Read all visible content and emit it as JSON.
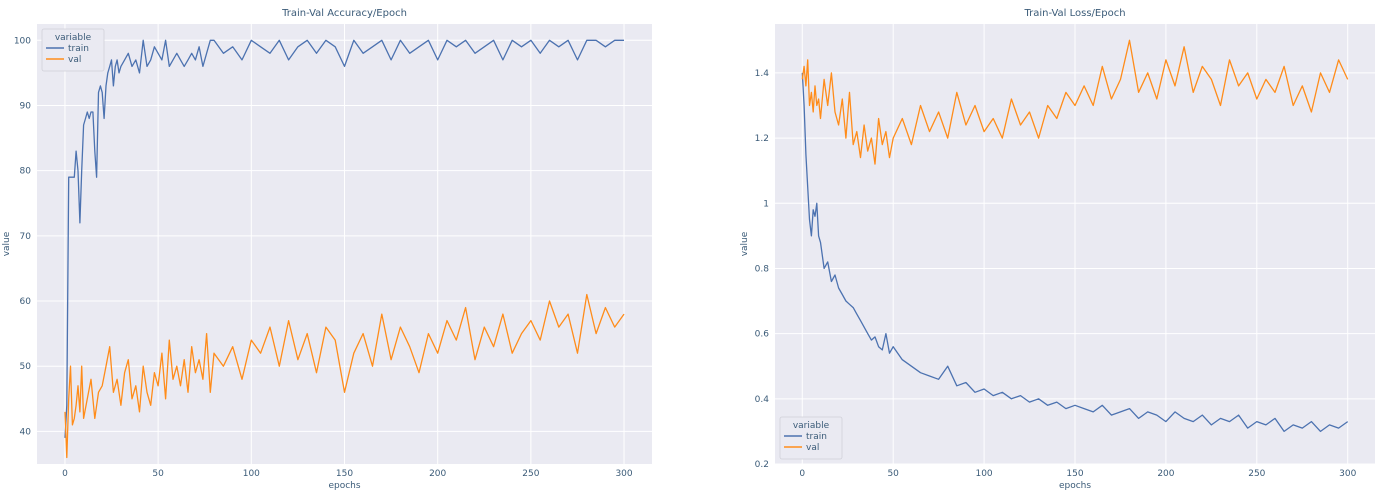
{
  "chart_data": [
    {
      "type": "line",
      "title": "Train-Val Accuracy/Epoch",
      "xlabel": "epochs",
      "ylabel": "value",
      "xlim": [
        -15,
        315
      ],
      "ylim": [
        35,
        102.5
      ],
      "xticks": [
        0,
        50,
        100,
        150,
        200,
        250,
        300
      ],
      "yticks": [
        40,
        50,
        60,
        70,
        80,
        90,
        100
      ],
      "grid": true,
      "legend": {
        "title": "variable",
        "placement": "top-left"
      },
      "series": [
        {
          "name": "train",
          "color": "#4c72b0",
          "x": [
            0,
            1,
            2,
            3,
            4,
            5,
            6,
            7,
            8,
            9,
            10,
            11,
            12,
            13,
            14,
            15,
            16,
            17,
            18,
            19,
            20,
            21,
            22,
            23,
            24,
            25,
            26,
            27,
            28,
            29,
            30,
            32,
            34,
            36,
            38,
            40,
            42,
            44,
            46,
            48,
            50,
            52,
            54,
            56,
            58,
            60,
            62,
            64,
            66,
            68,
            70,
            72,
            74,
            76,
            78,
            80,
            85,
            90,
            95,
            100,
            105,
            110,
            115,
            120,
            125,
            130,
            135,
            140,
            145,
            150,
            155,
            160,
            165,
            170,
            175,
            180,
            185,
            190,
            195,
            200,
            205,
            210,
            215,
            220,
            225,
            230,
            235,
            240,
            245,
            250,
            255,
            260,
            265,
            270,
            275,
            280,
            285,
            290,
            295,
            300
          ],
          "values": [
            39,
            44,
            79,
            79,
            79,
            79,
            83,
            80,
            72,
            80,
            87,
            88,
            89,
            88,
            89,
            89,
            83,
            79,
            92,
            93,
            92,
            88,
            93,
            95,
            96,
            97,
            93,
            96,
            97,
            95,
            96,
            97,
            98,
            96,
            97,
            95,
            100,
            96,
            97,
            99,
            98,
            97,
            100,
            96,
            97,
            98,
            97,
            96,
            97,
            98,
            97,
            99,
            96,
            98,
            100,
            100,
            98,
            99,
            97,
            100,
            99,
            98,
            100,
            97,
            99,
            100,
            98,
            100,
            99,
            96,
            100,
            98,
            99,
            100,
            97,
            100,
            98,
            99,
            100,
            97,
            100,
            99,
            100,
            98,
            99,
            100,
            97,
            100,
            99,
            100,
            98,
            100,
            99,
            100,
            97,
            100,
            100,
            99,
            100,
            100
          ]
        },
        {
          "name": "val",
          "color": "#ff8c1a",
          "x": [
            0,
            1,
            2,
            3,
            4,
            5,
            6,
            7,
            8,
            9,
            10,
            12,
            14,
            16,
            18,
            20,
            22,
            24,
            26,
            28,
            30,
            32,
            34,
            36,
            38,
            40,
            42,
            44,
            46,
            48,
            50,
            52,
            54,
            56,
            58,
            60,
            62,
            64,
            66,
            68,
            70,
            72,
            74,
            76,
            78,
            80,
            85,
            90,
            95,
            100,
            105,
            110,
            115,
            120,
            125,
            130,
            135,
            140,
            145,
            150,
            155,
            160,
            165,
            170,
            175,
            180,
            185,
            190,
            195,
            200,
            205,
            210,
            215,
            220,
            225,
            230,
            235,
            240,
            245,
            250,
            255,
            260,
            265,
            270,
            275,
            280,
            285,
            290,
            295,
            300
          ],
          "values": [
            43,
            36,
            45,
            50,
            41,
            42,
            44,
            47,
            43,
            50,
            42,
            45,
            48,
            42,
            46,
            47,
            50,
            53,
            46,
            48,
            44,
            49,
            51,
            45,
            47,
            43,
            50,
            46,
            44,
            49,
            47,
            52,
            45,
            54,
            48,
            50,
            47,
            51,
            46,
            53,
            49,
            51,
            48,
            55,
            46,
            52,
            50,
            53,
            48,
            54,
            52,
            56,
            50,
            57,
            51,
            55,
            49,
            56,
            54,
            46,
            52,
            55,
            50,
            58,
            51,
            56,
            53,
            49,
            55,
            52,
            57,
            54,
            59,
            51,
            56,
            53,
            58,
            52,
            55,
            57,
            54,
            60,
            56,
            58,
            52,
            61,
            55,
            59,
            56,
            58
          ]
        }
      ]
    },
    {
      "type": "line",
      "title": "Train-Val Loss/Epoch",
      "xlabel": "epochs",
      "ylabel": "value",
      "xlim": [
        -15,
        315
      ],
      "ylim": [
        0.2,
        1.55
      ],
      "xticks": [
        0,
        50,
        100,
        150,
        200,
        250,
        300
      ],
      "yticks": [
        0.2,
        0.4,
        0.6,
        0.8,
        1.0,
        1.2,
        1.4
      ],
      "grid": true,
      "legend": {
        "title": "variable",
        "placement": "bottom-left"
      },
      "series": [
        {
          "name": "train",
          "color": "#4c72b0",
          "x": [
            0,
            1,
            2,
            3,
            4,
            5,
            6,
            7,
            8,
            9,
            10,
            12,
            14,
            16,
            18,
            20,
            22,
            24,
            26,
            28,
            30,
            32,
            34,
            36,
            38,
            40,
            42,
            44,
            46,
            48,
            50,
            55,
            60,
            65,
            70,
            75,
            80,
            85,
            90,
            95,
            100,
            105,
            110,
            115,
            120,
            125,
            130,
            135,
            140,
            145,
            150,
            155,
            160,
            165,
            170,
            175,
            180,
            185,
            190,
            195,
            200,
            205,
            210,
            215,
            220,
            225,
            230,
            235,
            240,
            245,
            250,
            255,
            260,
            265,
            270,
            275,
            280,
            285,
            290,
            295,
            300
          ],
          "values": [
            1.4,
            1.3,
            1.15,
            1.05,
            0.95,
            0.9,
            0.98,
            0.96,
            1.0,
            0.9,
            0.88,
            0.8,
            0.82,
            0.76,
            0.78,
            0.74,
            0.72,
            0.7,
            0.69,
            0.68,
            0.66,
            0.64,
            0.62,
            0.6,
            0.58,
            0.59,
            0.56,
            0.55,
            0.6,
            0.54,
            0.56,
            0.52,
            0.5,
            0.48,
            0.47,
            0.46,
            0.5,
            0.44,
            0.45,
            0.42,
            0.43,
            0.41,
            0.42,
            0.4,
            0.41,
            0.39,
            0.4,
            0.38,
            0.39,
            0.37,
            0.38,
            0.37,
            0.36,
            0.38,
            0.35,
            0.36,
            0.37,
            0.34,
            0.36,
            0.35,
            0.33,
            0.36,
            0.34,
            0.33,
            0.35,
            0.32,
            0.34,
            0.33,
            0.35,
            0.31,
            0.33,
            0.32,
            0.34,
            0.3,
            0.32,
            0.31,
            0.33,
            0.3,
            0.32,
            0.31,
            0.33
          ]
        },
        {
          "name": "val",
          "color": "#ff8c1a",
          "x": [
            0,
            1,
            2,
            3,
            4,
            5,
            6,
            7,
            8,
            9,
            10,
            12,
            14,
            16,
            18,
            20,
            22,
            24,
            26,
            28,
            30,
            32,
            34,
            36,
            38,
            40,
            42,
            44,
            46,
            48,
            50,
            55,
            60,
            65,
            70,
            75,
            80,
            85,
            90,
            95,
            100,
            105,
            110,
            115,
            120,
            125,
            130,
            135,
            140,
            145,
            150,
            155,
            160,
            165,
            170,
            175,
            180,
            185,
            190,
            195,
            200,
            205,
            210,
            215,
            220,
            225,
            230,
            235,
            240,
            245,
            250,
            255,
            260,
            265,
            270,
            275,
            280,
            285,
            290,
            295,
            300
          ],
          "values": [
            1.38,
            1.42,
            1.36,
            1.44,
            1.3,
            1.34,
            1.28,
            1.36,
            1.3,
            1.32,
            1.26,
            1.38,
            1.3,
            1.4,
            1.28,
            1.24,
            1.32,
            1.2,
            1.34,
            1.18,
            1.22,
            1.14,
            1.24,
            1.16,
            1.2,
            1.12,
            1.26,
            1.18,
            1.22,
            1.14,
            1.2,
            1.26,
            1.18,
            1.3,
            1.22,
            1.28,
            1.2,
            1.34,
            1.24,
            1.3,
            1.22,
            1.26,
            1.2,
            1.32,
            1.24,
            1.28,
            1.2,
            1.3,
            1.26,
            1.34,
            1.3,
            1.36,
            1.3,
            1.42,
            1.32,
            1.38,
            1.5,
            1.34,
            1.4,
            1.32,
            1.44,
            1.36,
            1.48,
            1.34,
            1.42,
            1.38,
            1.3,
            1.44,
            1.36,
            1.4,
            1.32,
            1.38,
            1.34,
            1.42,
            1.3,
            1.36,
            1.28,
            1.4,
            1.34,
            1.44,
            1.38
          ]
        }
      ]
    }
  ]
}
